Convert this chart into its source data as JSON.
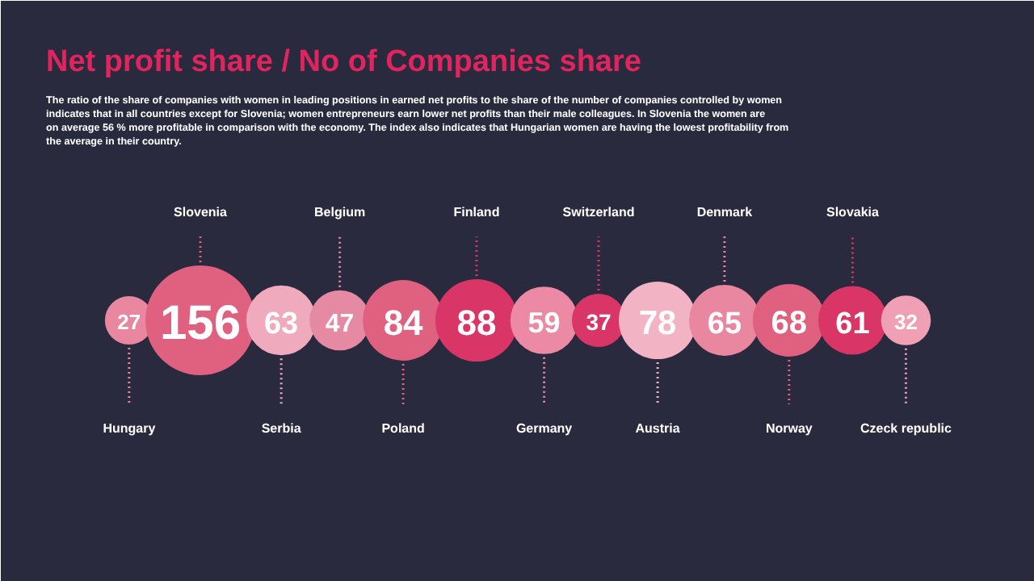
{
  "chart_data": {
    "type": "other",
    "title": "Net profit share / No of Companies share",
    "subtitle": "The ratio of the share of companies with women in leading positions in earned net profits to the share of the number of companies controlled by women indicates that in all countries except for Slovenia; women entrepreneurs earn lower net profits than their male colleagues. In Slovenia the women are on average 56 % more profitable in comparison with the economy. The index also indicates that Hungarian women are having the lowest profitability from the average in their country.",
    "categories": [
      "Hungary",
      "Slovenia",
      "Serbia",
      "Belgium",
      "Poland",
      "Finland",
      "Germany",
      "Switzerland",
      "Austria",
      "Denmark",
      "Norway",
      "Slovakia",
      "Czeck republic"
    ],
    "values": [
      27,
      156,
      63,
      47,
      84,
      88,
      59,
      37,
      78,
      65,
      68,
      61,
      32
    ],
    "colors": [
      "#e8879f",
      "#e0607f",
      "#f0aabd",
      "#e58aa2",
      "#e0607f",
      "#d93566",
      "#ec8aa5",
      "#d93566",
      "#f2b3c4",
      "#e8879f",
      "#e0607f",
      "#d93566",
      "#f0a0b5"
    ],
    "data_labels": true
  }
}
